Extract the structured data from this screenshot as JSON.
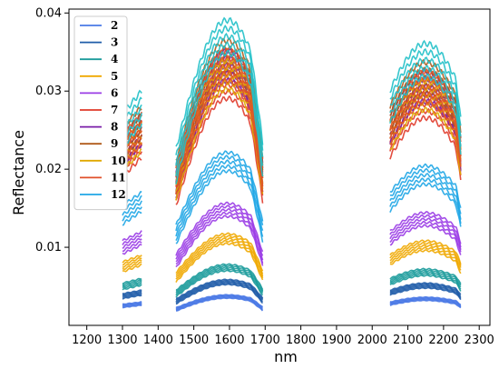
{
  "chart_data": {
    "type": "line",
    "title": "",
    "xlabel": "nm",
    "ylabel": "Reflectance",
    "xlim": [
      1150,
      2330
    ],
    "ylim": [
      0.0,
      0.0405
    ],
    "x_ticks": [
      "1200",
      "1300",
      "1400",
      "1500",
      "1600",
      "1700",
      "1800",
      "1900",
      "2000",
      "2100",
      "2200",
      "2300"
    ],
    "y_ticks": [
      "0.01",
      "0.02",
      "0.03",
      "0.04"
    ],
    "legend_position": "top-left",
    "grid": false,
    "band_segments": [
      [
        1300,
        1355
      ],
      [
        1450,
        1695
      ],
      [
        2050,
        2250
      ]
    ],
    "series": [
      {
        "name": "2",
        "color": "#4a79e6",
        "level": 0.003
      },
      {
        "name": "3",
        "color": "#1f5ca8",
        "level": 0.0045
      },
      {
        "name": "4",
        "color": "#1b9b9b",
        "level": 0.006
      },
      {
        "name": "5",
        "color": "#f0a800",
        "level": 0.009
      },
      {
        "name": "6",
        "color": "#9a3ce6",
        "level": 0.012
      },
      {
        "name": "7",
        "color": "#e03a2a",
        "level": 0.025
      },
      {
        "name": "8",
        "color": "#7a1fa8",
        "level": 0.027
      },
      {
        "name": "9",
        "color": "#b05a1a",
        "level": 0.028
      },
      {
        "name": "10",
        "color": "#e0a800",
        "level": 0.026
      },
      {
        "name": "11",
        "color": "#e0502a",
        "level": 0.027
      },
      {
        "name": "12",
        "color": "#1fa6e6",
        "level": 0.017
      },
      {
        "name": "",
        "color": "#20c0c8",
        "level": 0.03
      }
    ]
  }
}
